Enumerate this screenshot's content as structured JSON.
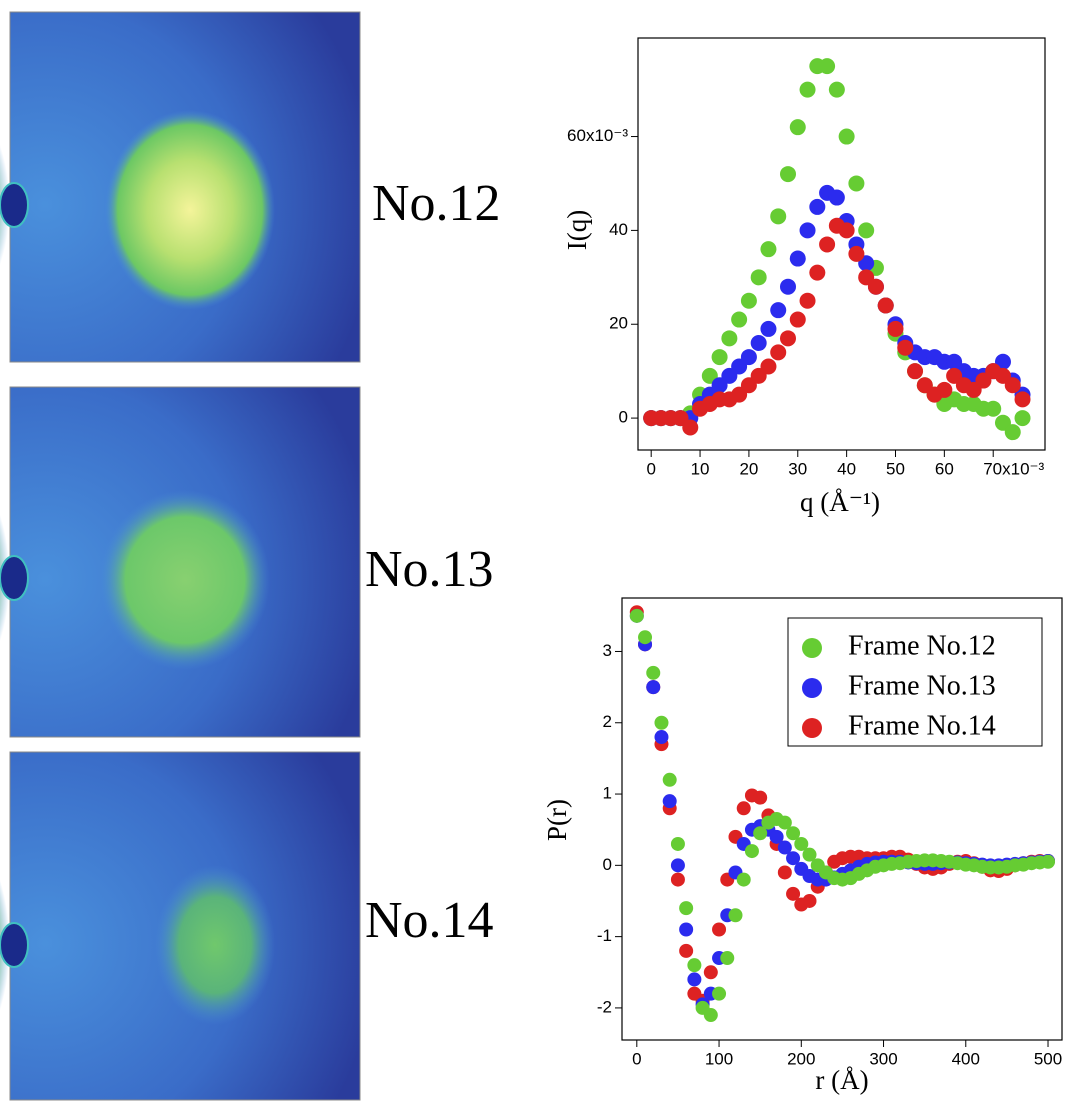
{
  "images": [
    {
      "label": "No.12"
    },
    {
      "label": "No.13"
    },
    {
      "label": "No.14"
    }
  ],
  "chart_data": [
    {
      "type": "scatter",
      "xlabel": "q (Å⁻¹)",
      "ylabel": "I(q)",
      "x": [
        0,
        2,
        4,
        6,
        8,
        10,
        12,
        14,
        16,
        18,
        20,
        22,
        24,
        26,
        28,
        30,
        32,
        34,
        36,
        38,
        40,
        42,
        44,
        46,
        48,
        50,
        52,
        54,
        56,
        58,
        60,
        62,
        64,
        66,
        68,
        70,
        72,
        74,
        76
      ],
      "series": [
        {
          "color": "#66cc33",
          "values": [
            0,
            0,
            0,
            0,
            1,
            5,
            9,
            13,
            17,
            21,
            25,
            30,
            36,
            43,
            52,
            62,
            70,
            75,
            75,
            70,
            60,
            50,
            40,
            32,
            24,
            18,
            14,
            10,
            7,
            5,
            3,
            4,
            3,
            3,
            2,
            2,
            -1,
            -3,
            0
          ]
        },
        {
          "color": "#2b2bee",
          "values": [
            0,
            0,
            0,
            0,
            0,
            3,
            5,
            7,
            9,
            11,
            13,
            16,
            19,
            23,
            28,
            34,
            40,
            45,
            48,
            47,
            42,
            37,
            33,
            28,
            24,
            20,
            16,
            14,
            13,
            13,
            12,
            12,
            10,
            9,
            9,
            10,
            12,
            8,
            5
          ]
        },
        {
          "color": "#dd2222",
          "values": [
            0,
            0,
            0,
            0,
            -2,
            2,
            3,
            4,
            4,
            5,
            7,
            9,
            11,
            14,
            17,
            21,
            25,
            31,
            37,
            41,
            40,
            35,
            30,
            28,
            24,
            19,
            15,
            10,
            7,
            5,
            6,
            9,
            7,
            6,
            8,
            10,
            9,
            7,
            4
          ]
        }
      ],
      "xlim": [
        -2.7,
        80.6
      ],
      "ylim": [
        -6.8,
        81
      ],
      "xticks": [
        0,
        10,
        20,
        30,
        40,
        50,
        60,
        {
          "value": 70,
          "label": "70x10⁻³"
        }
      ],
      "yticks": [
        0,
        20,
        40,
        {
          "value": 60,
          "label": "60x10⁻³"
        }
      ]
    },
    {
      "type": "scatter",
      "xlabel": "r (Å)",
      "ylabel": "P(r)",
      "legend": "upper right",
      "x": [
        0,
        10,
        20,
        30,
        40,
        50,
        60,
        70,
        80,
        90,
        100,
        110,
        120,
        130,
        140,
        150,
        160,
        170,
        180,
        190,
        200,
        210,
        220,
        230,
        240,
        250,
        260,
        270,
        280,
        290,
        300,
        310,
        320,
        330,
        340,
        350,
        360,
        370,
        380,
        390,
        400,
        410,
        420,
        430,
        440,
        450,
        460,
        470,
        480,
        490,
        500
      ],
      "series": [
        {
          "name": "Frame No.12",
          "color": "#66cc33",
          "values": [
            3.5,
            3.2,
            2.7,
            2.0,
            1.2,
            0.3,
            -0.6,
            -1.4,
            -2.0,
            -2.1,
            -1.8,
            -1.3,
            -0.7,
            -0.2,
            0.2,
            0.45,
            0.6,
            0.65,
            0.6,
            0.45,
            0.3,
            0.15,
            0,
            -0.1,
            -0.18,
            -0.2,
            -0.18,
            -0.12,
            -0.07,
            -0.02,
            0,
            0.02,
            0.03,
            0.05,
            0.06,
            0.07,
            0.07,
            0.06,
            0.05,
            0.03,
            0.01,
            0,
            -0.02,
            -0.03,
            -0.03,
            -0.02,
            0,
            0.01,
            0.03,
            0.04,
            0.05
          ]
        },
        {
          "name": "Frame No.13",
          "color": "#2b2bee",
          "values": [
            3.5,
            3.1,
            2.5,
            1.8,
            0.9,
            0,
            -0.9,
            -1.6,
            -1.95,
            -1.8,
            -1.3,
            -0.7,
            -0.1,
            0.3,
            0.5,
            0.55,
            0.5,
            0.4,
            0.25,
            0.1,
            -0.05,
            -0.15,
            -0.2,
            -0.2,
            -0.17,
            -0.12,
            -0.07,
            -0.02,
            0.02,
            0.04,
            0.05,
            0.05,
            0.05,
            0.04,
            0.03,
            0.02,
            0.02,
            0.03,
            0.04,
            0.04,
            0.03,
            0.02,
            0.01,
            0,
            0,
            0.01,
            0.02,
            0.03,
            0.04,
            0.05,
            0.06
          ]
        },
        {
          "name": "Frame No.14",
          "color": "#dd2222",
          "values": [
            3.55,
            3.1,
            2.5,
            1.7,
            0.8,
            -0.2,
            -1.2,
            -1.8,
            -1.9,
            -1.5,
            -0.9,
            -0.2,
            0.4,
            0.8,
            0.98,
            0.95,
            0.7,
            0.3,
            -0.1,
            -0.4,
            -0.55,
            -0.5,
            -0.3,
            -0.1,
            0.05,
            0.1,
            0.12,
            0.12,
            0.1,
            0.1,
            0.1,
            0.12,
            0.12,
            0.08,
            0.02,
            -0.03,
            -0.05,
            -0.03,
            0.02,
            0.05,
            0.06,
            0.03,
            -0.02,
            -0.07,
            -0.08,
            -0.05,
            0,
            0.03,
            0.05,
            0.06,
            0.06
          ]
        }
      ],
      "xlim": [
        -18,
        517
      ],
      "ylim": [
        -2.45,
        3.75
      ],
      "xticks": [
        0,
        100,
        200,
        300,
        400,
        500
      ],
      "yticks": [
        -2,
        -1,
        0,
        1,
        2,
        3
      ]
    }
  ]
}
